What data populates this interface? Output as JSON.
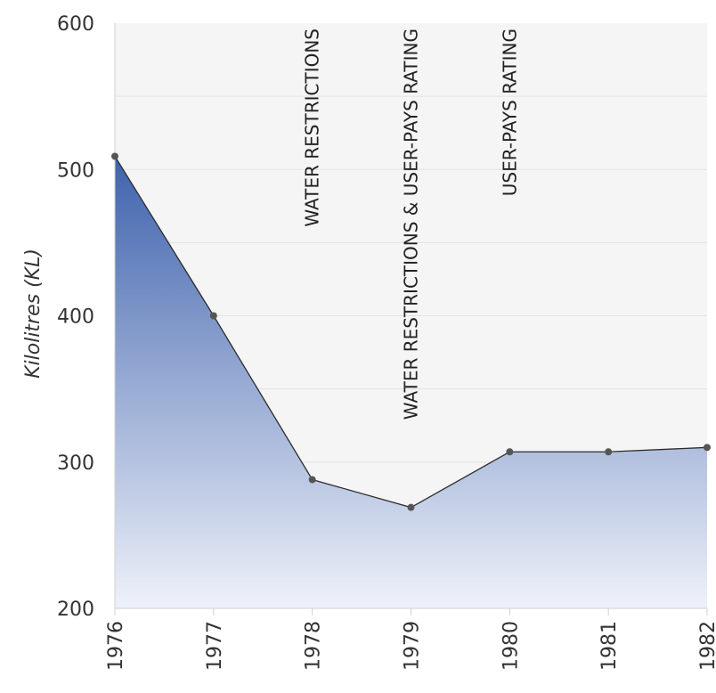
{
  "chart_data": {
    "type": "area",
    "title": "",
    "xlabel": "",
    "ylabel": "Kilolitres (KL)",
    "categories": [
      "1976",
      "1977",
      "1978",
      "1979",
      "1980",
      "1981",
      "1982"
    ],
    "series": [
      {
        "values": [
          509,
          400,
          288,
          269,
          307,
          307,
          310
        ]
      }
    ],
    "ylim": [
      200,
      600
    ],
    "yticks": [
      "200",
      "300",
      "400",
      "500",
      "600"
    ],
    "grid": true,
    "annotations": [
      {
        "x": "1978",
        "text": "WATER RESTRICTIONS"
      },
      {
        "x": "1979",
        "text": "WATER RESTRICTIONS & USER-PAYS RATING"
      },
      {
        "x": "1980",
        "text": "USER-PAYS RATING"
      }
    ],
    "colors": {
      "fill_top": "#3f63ad",
      "fill_bottom": "#eef1f9",
      "line": "#2b2b2b",
      "point": "#555555",
      "plot_bg": "#f5f5f5",
      "grid": "#e4e4e4",
      "axis": "#d0d0d0"
    }
  }
}
